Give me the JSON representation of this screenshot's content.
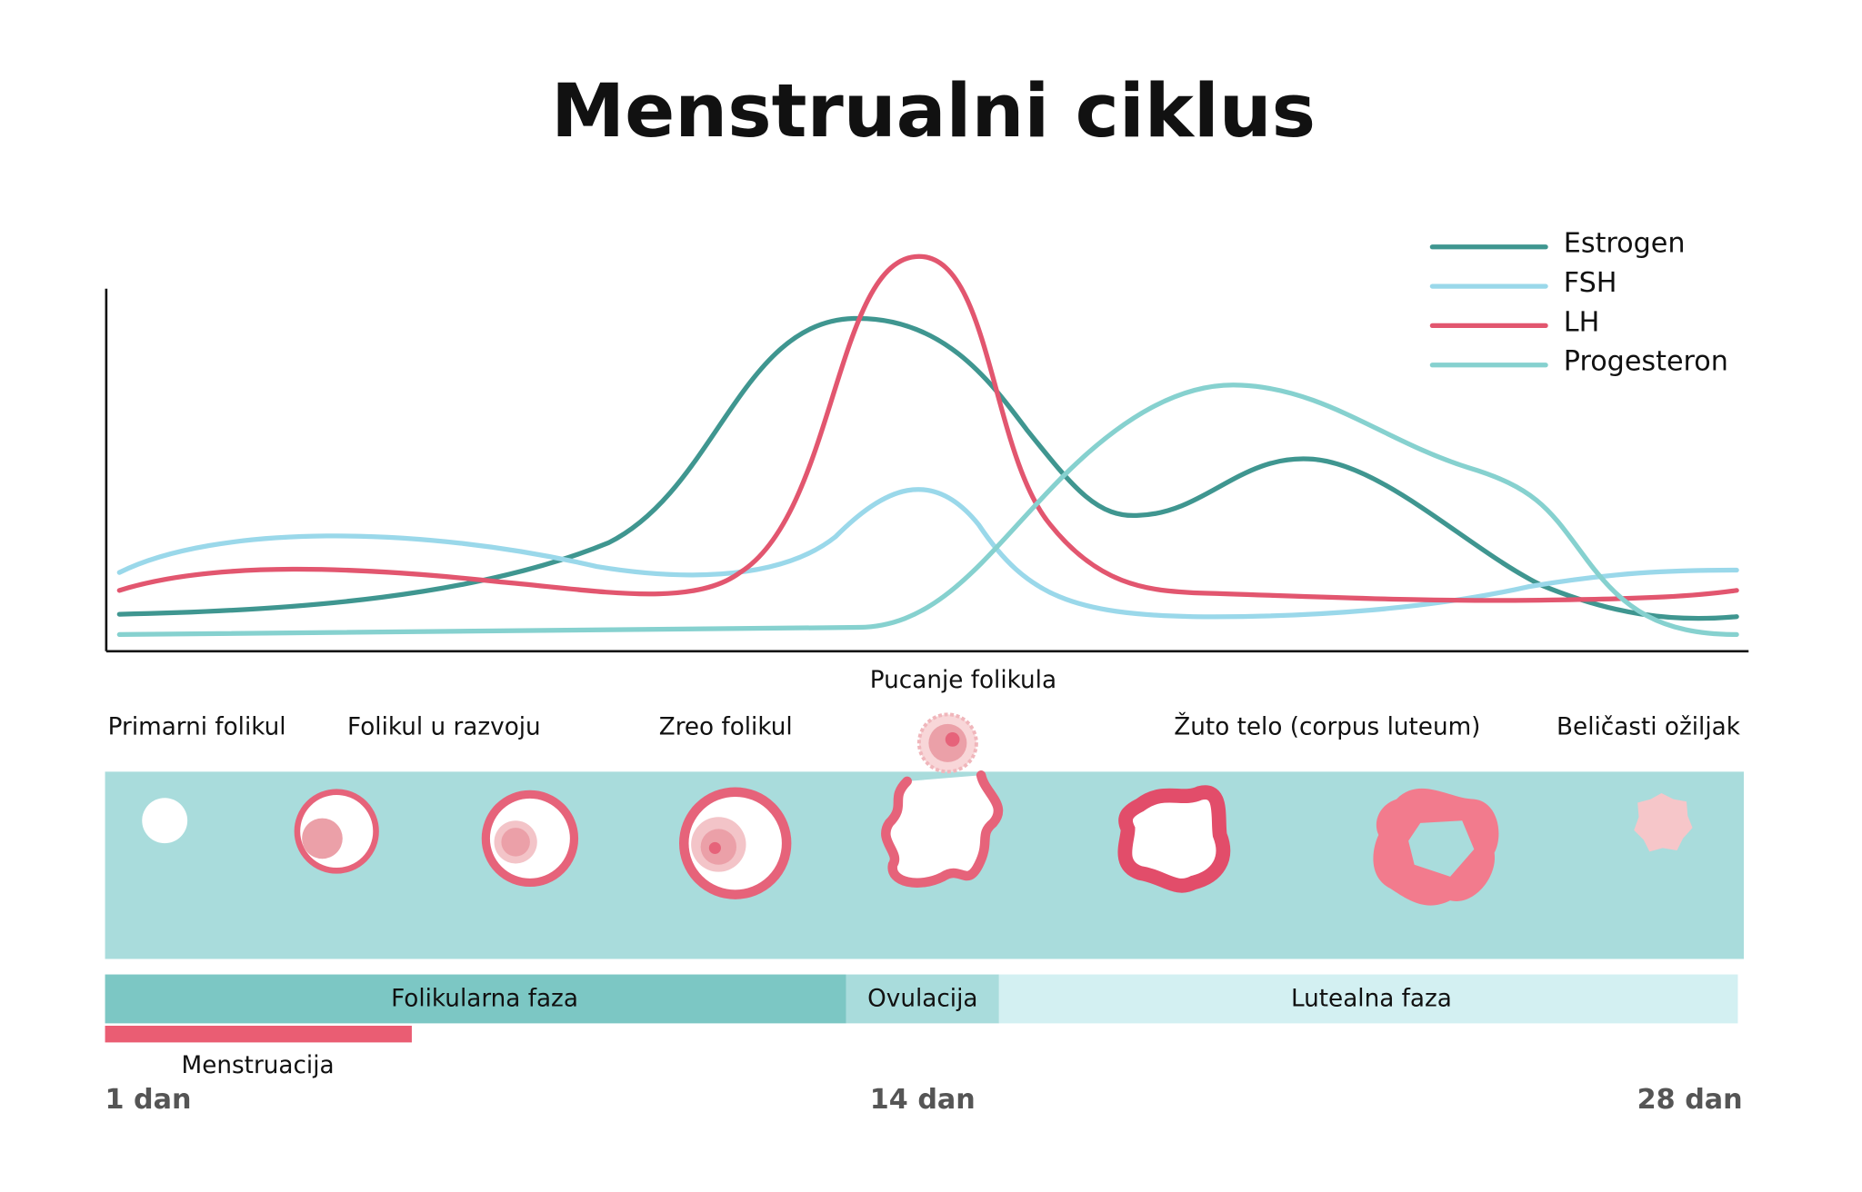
{
  "title": "Menstrualni ciklus",
  "legend": [
    {
      "label": "Estrogen",
      "color": "#3f9690"
    },
    {
      "label": "FSH",
      "color": "#9ad8ea"
    },
    {
      "label": "LH",
      "color": "#e2566f"
    },
    {
      "label": "Progesteron",
      "color": "#86d1cf"
    }
  ],
  "rupture": "Pucanje folikula",
  "stages": [
    "Primarni folikul",
    "Folikul u razvoju",
    "Zreo folikul",
    "Žuto telo (corpus luteum)",
    "Beličasti ožiljak"
  ],
  "phases": [
    "Folikularna faza",
    "Ovulacija",
    "Lutealna faza"
  ],
  "menstruation": "Menstruacija",
  "days": [
    "1 dan",
    "14 dan",
    "28 dan"
  ]
}
